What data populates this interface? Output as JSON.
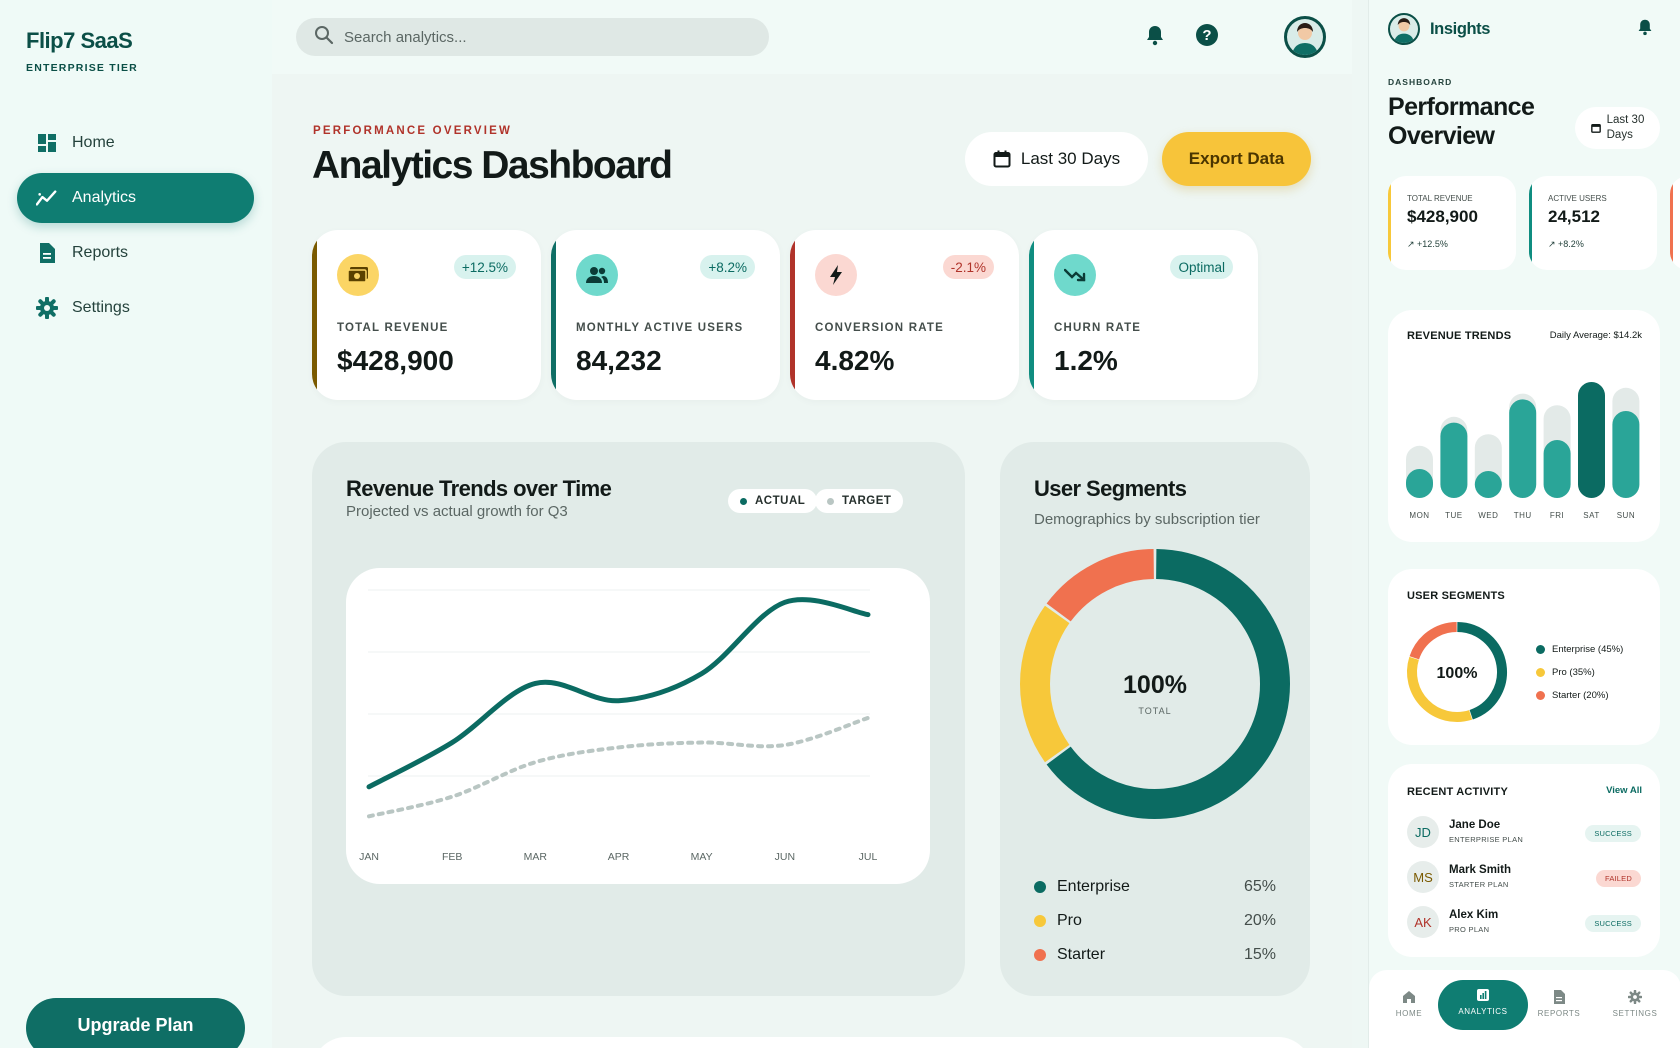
{
  "brand": {
    "name": "Flip7 SaaS",
    "tier": "ENTERPRISE TIER"
  },
  "sidebar": {
    "items": [
      {
        "label": "Home",
        "icon": "grid-icon"
      },
      {
        "label": "Analytics",
        "icon": "trend-icon",
        "active": true
      },
      {
        "label": "Reports",
        "icon": "document-icon"
      },
      {
        "label": "Settings",
        "icon": "gear-icon"
      }
    ],
    "upgrade_label": "Upgrade Plan"
  },
  "topbar": {
    "search_placeholder": "Search analytics..."
  },
  "header": {
    "eyebrow": "PERFORMANCE OVERVIEW",
    "title": "Analytics Dashboard",
    "range_label": "Last 30 Days",
    "export_label": "Export Data"
  },
  "kpis": [
    {
      "label": "TOTAL REVENUE",
      "value": "$428,900",
      "badge": "+12.5%",
      "accent": "#7a5a00",
      "icon": "money-icon"
    },
    {
      "label": "MONTHLY ACTIVE USERS",
      "value": "84,232",
      "badge": "+8.2%",
      "accent": "#0f6e65",
      "icon": "users-icon"
    },
    {
      "label": "CONVERSION RATE",
      "value": "4.82%",
      "badge": "-2.1%",
      "accent": "#b0332a",
      "icon": "bolt-icon"
    },
    {
      "label": "CHURN RATE",
      "value": "1.2%",
      "badge": "Optimal",
      "accent": "#0f8d80",
      "icon": "trend-down-icon"
    }
  ],
  "revenue_card": {
    "title": "Revenue Trends over Time",
    "subtitle": "Projected vs actual growth for Q3",
    "legend_actual": "ACTUAL",
    "legend_target": "TARGET"
  },
  "segments_card": {
    "title": "User Segments",
    "subtitle": "Demographics by subscription tier",
    "center_value": "100%",
    "center_label": "TOTAL",
    "rows": [
      {
        "name": "Enterprise",
        "pct": "65%",
        "color": "#0b6b62"
      },
      {
        "name": "Pro",
        "pct": "20%",
        "color": "#f7c83a"
      },
      {
        "name": "Starter",
        "pct": "15%",
        "color": "#f0714f"
      }
    ]
  },
  "chart_data": [
    {
      "type": "line",
      "title": "Revenue Trends over Time",
      "categories": [
        "JAN",
        "FEB",
        "MAR",
        "APR",
        "MAY",
        "JUN",
        "JUL"
      ],
      "series": [
        {
          "name": "ACTUAL",
          "values": [
            20,
            38,
            62,
            55,
            66,
            95,
            90
          ],
          "color": "#0b6b62"
        },
        {
          "name": "TARGET",
          "values": [
            8,
            16,
            30,
            36,
            38,
            37,
            48
          ],
          "color": "#b9c6c3"
        }
      ],
      "ylim": [
        0,
        100
      ],
      "grid": true
    },
    {
      "type": "pie",
      "title": "User Segments",
      "categories": [
        "Enterprise",
        "Pro",
        "Starter"
      ],
      "values": [
        65,
        20,
        15
      ],
      "colors": [
        "#0b6b62",
        "#f7c83a",
        "#f0714f"
      ]
    },
    {
      "type": "bar",
      "title": "REVENUE TRENDS",
      "categories": [
        "MON",
        "TUE",
        "WED",
        "THU",
        "FRI",
        "SAT",
        "SUN"
      ],
      "values": [
        25,
        65,
        20,
        85,
        50,
        100,
        75
      ],
      "backgrounds": [
        45,
        70,
        55,
        90,
        80,
        100,
        95
      ],
      "ylim": [
        0,
        100
      ]
    },
    {
      "type": "pie",
      "title": "USER SEGMENTS",
      "categories": [
        "Enterprise",
        "Pro",
        "Starter"
      ],
      "values": [
        45,
        35,
        20
      ],
      "colors": [
        "#0b6b62",
        "#f7c83a",
        "#f0714f"
      ]
    }
  ],
  "rpanel": {
    "title": "Insights",
    "eyebrow": "DASHBOARD",
    "page_title": "Performance Overview",
    "range_line1": "Last 30",
    "range_line2": "Days",
    "kpis": [
      {
        "label": "TOTAL REVENUE",
        "value": "$428,900",
        "change": "+12.5%",
        "accent": "#f7c83a"
      },
      {
        "label": "ACTIVE USERS",
        "value": "24,512",
        "change": "+8.2%",
        "accent": "#0f8d80"
      }
    ],
    "revenue_title": "REVENUE TRENDS",
    "daily_avg": "Daily Average: $14.2k",
    "days": [
      "MON",
      "TUE",
      "WED",
      "THU",
      "FRI",
      "SAT",
      "SUN"
    ],
    "segments_title": "USER SEGMENTS",
    "segments_center": "100%",
    "segments": [
      {
        "label": "Enterprise (45%)",
        "color": "#0b6b62"
      },
      {
        "label": "Pro (35%)",
        "color": "#f7c83a"
      },
      {
        "label": "Starter (20%)",
        "color": "#f0714f"
      }
    ],
    "activity_title": "RECENT ACTIVITY",
    "view_all": "View All",
    "activity": [
      {
        "initials": "JD",
        "name": "Jane Doe",
        "plan": "ENTERPRISE PLAN",
        "status": "SUCCESS",
        "color": "#0b6b62"
      },
      {
        "initials": "MS",
        "name": "Mark Smith",
        "plan": "STARTER PLAN",
        "status": "FAILED",
        "color": "#7a5a00"
      },
      {
        "initials": "AK",
        "name": "Alex Kim",
        "plan": "PRO PLAN",
        "status": "SUCCESS",
        "color": "#b0332a"
      }
    ],
    "nav": [
      "HOME",
      "ANALYTICS",
      "REPORTS",
      "SETTINGS"
    ]
  }
}
